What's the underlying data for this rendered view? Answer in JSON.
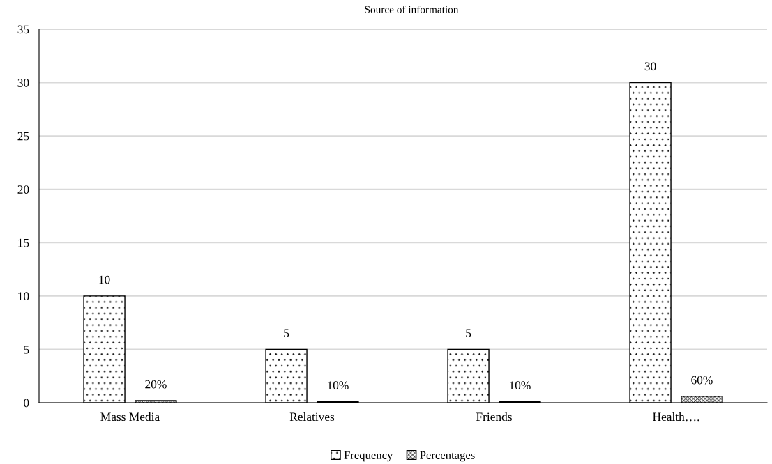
{
  "chart_data": {
    "type": "bar",
    "title": "Source of information",
    "categories": [
      "Mass Media",
      "Relatives",
      "Friends",
      "Health…."
    ],
    "series": [
      {
        "name": "Frequency",
        "color": "#000000",
        "values": [
          10,
          5,
          5,
          30
        ],
        "value_labels": [
          "10",
          "5",
          "5",
          "30"
        ]
      },
      {
        "name": "Percentages",
        "color": "#000000",
        "values": [
          0.2,
          0.1,
          0.1,
          0.6
        ],
        "value_labels": [
          "20%",
          "10%",
          "10%",
          "60%"
        ]
      }
    ],
    "ylim": [
      0,
      35
    ],
    "yticks": [
      0,
      5,
      10,
      15,
      20,
      25,
      30,
      35
    ],
    "grid": "y",
    "legend": "bottom"
  }
}
